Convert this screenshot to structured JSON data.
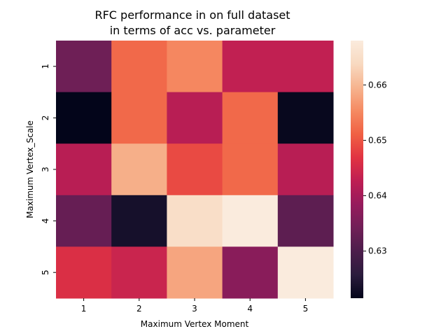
{
  "chart_data": {
    "type": "heatmap",
    "title_lines": [
      "RFC performance in on full dataset",
      "in terms of acc vs. parameter"
    ],
    "xlabel": "Maximum Vertex Moment",
    "ylabel": "Maximum Vertex_Scale",
    "x_categories": [
      "1",
      "2",
      "3",
      "4",
      "5"
    ],
    "y_categories": [
      "1",
      "2",
      "3",
      "4",
      "5"
    ],
    "values": [
      [
        0.634,
        0.652,
        0.655,
        0.643,
        0.643
      ],
      [
        0.6215,
        0.652,
        0.642,
        0.652,
        0.622
      ],
      [
        0.642,
        0.659,
        0.649,
        0.652,
        0.642
      ],
      [
        0.633,
        0.6235,
        0.665,
        0.668,
        0.632
      ],
      [
        0.646,
        0.644,
        0.658,
        0.637,
        0.668
      ]
    ],
    "colorbar": {
      "min": 0.6215,
      "max": 0.668,
      "ticks": [
        0.63,
        0.64,
        0.65,
        0.66
      ],
      "tick_labels": [
        "0.63",
        "0.64",
        "0.65",
        "0.66"
      ],
      "colormap": "rocket",
      "colormap_stops": [
        "#03051a",
        "#2b1c3d",
        "#4c1d4b",
        "#701f57",
        "#961b5c",
        "#be1e53",
        "#e13342",
        "#f06043",
        "#f58a62",
        "#f6b48f",
        "#f8d9c0",
        "#faebdd"
      ]
    }
  }
}
